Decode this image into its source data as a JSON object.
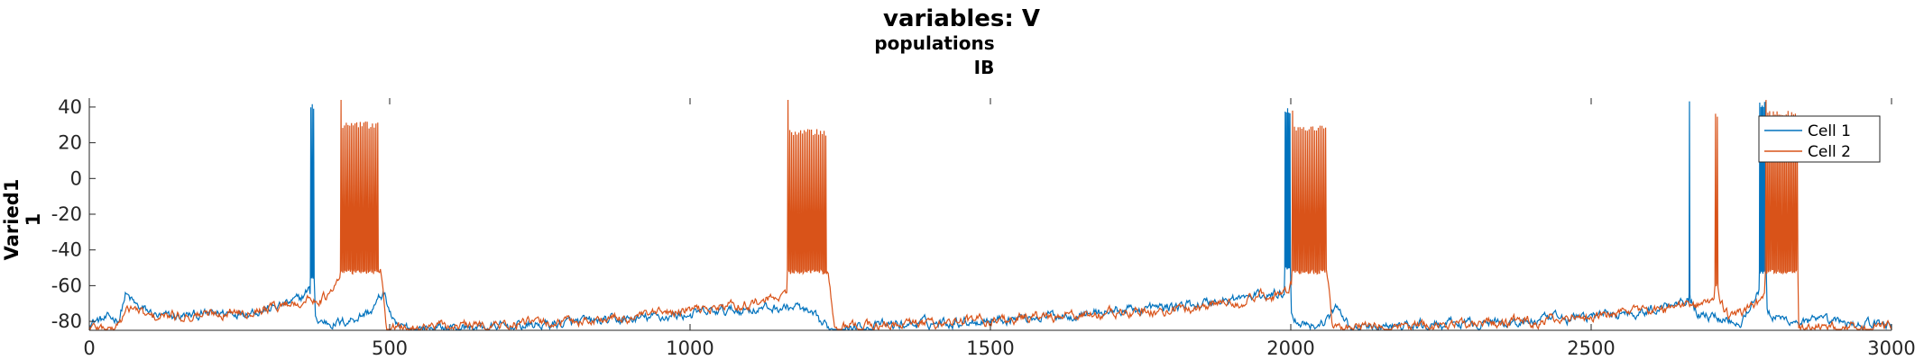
{
  "titles": {
    "main": "variables: V",
    "sub1": "populations",
    "sub2": "IB"
  },
  "ylabel": {
    "line1": "Varied1",
    "line2": "1"
  },
  "legend": {
    "cell1": "Cell 1",
    "cell2": "Cell 2"
  },
  "colors": {
    "cell1": "#0072BD",
    "cell2": "#D95319",
    "axis": "#262626"
  },
  "chart_data": {
    "type": "line",
    "title": "variables: V",
    "subtitle": "populations IB",
    "ylabel": "Varied1 1",
    "xlim": [
      0,
      3000
    ],
    "ylim": [
      -85,
      45
    ],
    "xticks": [
      0,
      500,
      1000,
      1500,
      2000,
      2500,
      3000
    ],
    "xtick_labels": [
      "0",
      "500",
      "1000",
      "1500",
      "2000",
      "2500",
      "3000"
    ],
    "yticks": [
      40,
      20,
      0,
      -20,
      -40,
      -60,
      -80
    ],
    "ytick_labels": [
      "40",
      "20",
      "0",
      "-20",
      "-40",
      "-60",
      "-80"
    ],
    "grid": false,
    "legend_position": "top-right",
    "series": [
      {
        "name": "Cell 1",
        "color": "#0072BD",
        "baseline_points": [
          [
            0,
            -80
          ],
          [
            50,
            -78
          ],
          [
            60,
            -65
          ],
          [
            80,
            -72
          ],
          [
            120,
            -78
          ],
          [
            200,
            -76
          ],
          [
            300,
            -73
          ],
          [
            350,
            -68
          ],
          [
            365,
            -62
          ],
          [
            380,
            -80
          ],
          [
            420,
            -81
          ],
          [
            470,
            -74
          ],
          [
            490,
            -64
          ],
          [
            510,
            -84
          ],
          [
            700,
            -83
          ],
          [
            900,
            -79
          ],
          [
            1100,
            -73
          ],
          [
            1180,
            -72
          ],
          [
            1230,
            -84
          ],
          [
            1500,
            -79
          ],
          [
            1800,
            -72
          ],
          [
            1990,
            -64
          ],
          [
            2010,
            -80
          ],
          [
            2050,
            -82
          ],
          [
            2080,
            -72
          ],
          [
            2100,
            -84
          ],
          [
            2400,
            -80
          ],
          [
            2600,
            -74
          ],
          [
            2660,
            -66
          ],
          [
            2680,
            -76
          ],
          [
            2750,
            -80
          ],
          [
            2780,
            -62
          ],
          [
            2800,
            -78
          ],
          [
            2850,
            -80
          ],
          [
            3000,
            -82
          ]
        ],
        "bursts": [
          {
            "start": 368,
            "end": 375,
            "top": 42,
            "bottom": -55,
            "spikes": 3
          },
          {
            "start": 1990,
            "end": 2000,
            "top": 40,
            "bottom": -50,
            "spikes": 5
          },
          {
            "start": 2663,
            "end": 2665,
            "top": 44,
            "bottom": -65,
            "spikes": 1
          },
          {
            "start": 2780,
            "end": 2792,
            "top": 44,
            "bottom": -52,
            "spikes": 6
          }
        ]
      },
      {
        "name": "Cell 2",
        "color": "#D95319",
        "baseline_points": [
          [
            0,
            -83
          ],
          [
            40,
            -84
          ],
          [
            70,
            -72
          ],
          [
            100,
            -78
          ],
          [
            200,
            -76
          ],
          [
            300,
            -72
          ],
          [
            400,
            -66
          ],
          [
            420,
            -55
          ],
          [
            485,
            -52
          ],
          [
            495,
            -84
          ],
          [
            700,
            -82
          ],
          [
            900,
            -78
          ],
          [
            1100,
            -70
          ],
          [
            1160,
            -66
          ],
          [
            1165,
            -52
          ],
          [
            1230,
            -52
          ],
          [
            1240,
            -84
          ],
          [
            1500,
            -79
          ],
          [
            1800,
            -74
          ],
          [
            1995,
            -64
          ],
          [
            2010,
            -52
          ],
          [
            2060,
            -52
          ],
          [
            2070,
            -84
          ],
          [
            2400,
            -80
          ],
          [
            2600,
            -74
          ],
          [
            2700,
            -70
          ],
          [
            2710,
            -66
          ],
          [
            2730,
            -78
          ],
          [
            2780,
            -70
          ],
          [
            2800,
            -52
          ],
          [
            2835,
            -52
          ],
          [
            2845,
            -84
          ],
          [
            3000,
            -82
          ]
        ],
        "bursts": [
          {
            "start": 418,
            "end": 482,
            "top": 32,
            "bottom": -52,
            "spikes": 22,
            "first_top": 44
          },
          {
            "start": 1162,
            "end": 1228,
            "top": 28,
            "bottom": -52,
            "spikes": 22,
            "first_top": 44
          },
          {
            "start": 2002,
            "end": 2060,
            "top": 30,
            "bottom": -52,
            "spikes": 19,
            "first_top": 38
          },
          {
            "start": 2706,
            "end": 2712,
            "top": 38,
            "bottom": -60,
            "spikes": 2
          },
          {
            "start": 2790,
            "end": 2845,
            "top": 38,
            "bottom": -52,
            "spikes": 18,
            "first_top": 44
          }
        ]
      }
    ]
  }
}
